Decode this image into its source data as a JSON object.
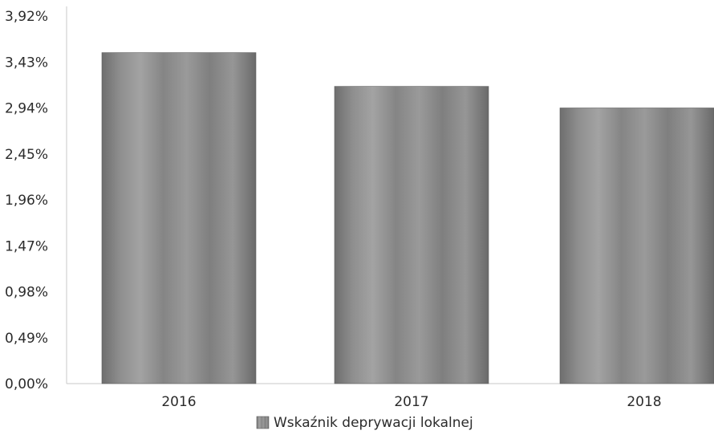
{
  "chart_data": {
    "type": "bar",
    "categories": [
      "2016",
      "2017",
      "2018"
    ],
    "series": [
      {
        "name": "Wskaźnik deprywacji lokalnej",
        "values": [
          3.53,
          3.17,
          2.94
        ]
      }
    ],
    "y_ticks": [
      "0,00%",
      "0,49%",
      "0,98%",
      "1,47%",
      "1,96%",
      "2,45%",
      "2,94%",
      "3,43%",
      "3,92%"
    ],
    "ylim": [
      0,
      3.92
    ],
    "grid": false,
    "legend": "bottom-center",
    "colors": {
      "bar": "#8a8a8a",
      "bar_dark": "#6e6e6e",
      "bar_light": "#a6a6a6",
      "axis": "#c8c8c8"
    }
  }
}
